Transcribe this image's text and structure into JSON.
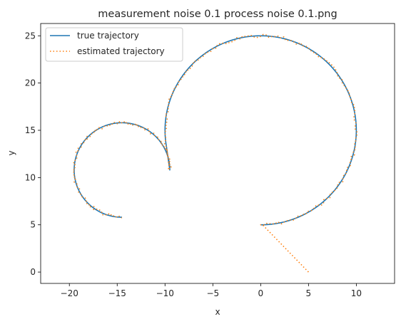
{
  "chart_data": {
    "type": "line",
    "title": "measurement noise 0.1 process noise 0.1.png",
    "xlabel": "x",
    "ylabel": "y",
    "xlim": [
      -23,
      14
    ],
    "ylim": [
      -1.2,
      26.3
    ],
    "xticks": [
      -20,
      -15,
      -10,
      -5,
      0,
      5,
      10
    ],
    "yticks": [
      0,
      5,
      10,
      15,
      20,
      25
    ],
    "xtick_labels": [
      "−20",
      "−15",
      "−10",
      "−5",
      "0",
      "5",
      "10"
    ],
    "ytick_labels": [
      "0",
      "5",
      "10",
      "15",
      "20",
      "25"
    ],
    "grid": false,
    "legend_position": "top-left",
    "series": [
      {
        "name": "true trajectory",
        "color": "#1f77b4",
        "style": "solid",
        "segments": [
          {
            "type": "arc",
            "cx": 0,
            "cy": 15,
            "r": 10,
            "start_deg": -90,
            "end_deg": 190
          },
          {
            "type": "arc",
            "cx": -14.5,
            "cy": 10.8,
            "r": 5,
            "start_deg": 0,
            "end_deg": 270
          }
        ]
      },
      {
        "name": "estimated trajectory",
        "color": "#ff7f0e",
        "style": "dotted",
        "initial_point": [
          5,
          0
        ],
        "segments": [
          {
            "type": "line",
            "from": [
              5,
              0
            ],
            "to": [
              0.2,
              5
            ]
          },
          {
            "type": "arc",
            "cx": 0,
            "cy": 15,
            "r": 10,
            "start_deg": -90,
            "end_deg": 190
          },
          {
            "type": "arc",
            "cx": -14.5,
            "cy": 10.8,
            "r": 5,
            "start_deg": 0,
            "end_deg": 270
          }
        ]
      }
    ]
  }
}
